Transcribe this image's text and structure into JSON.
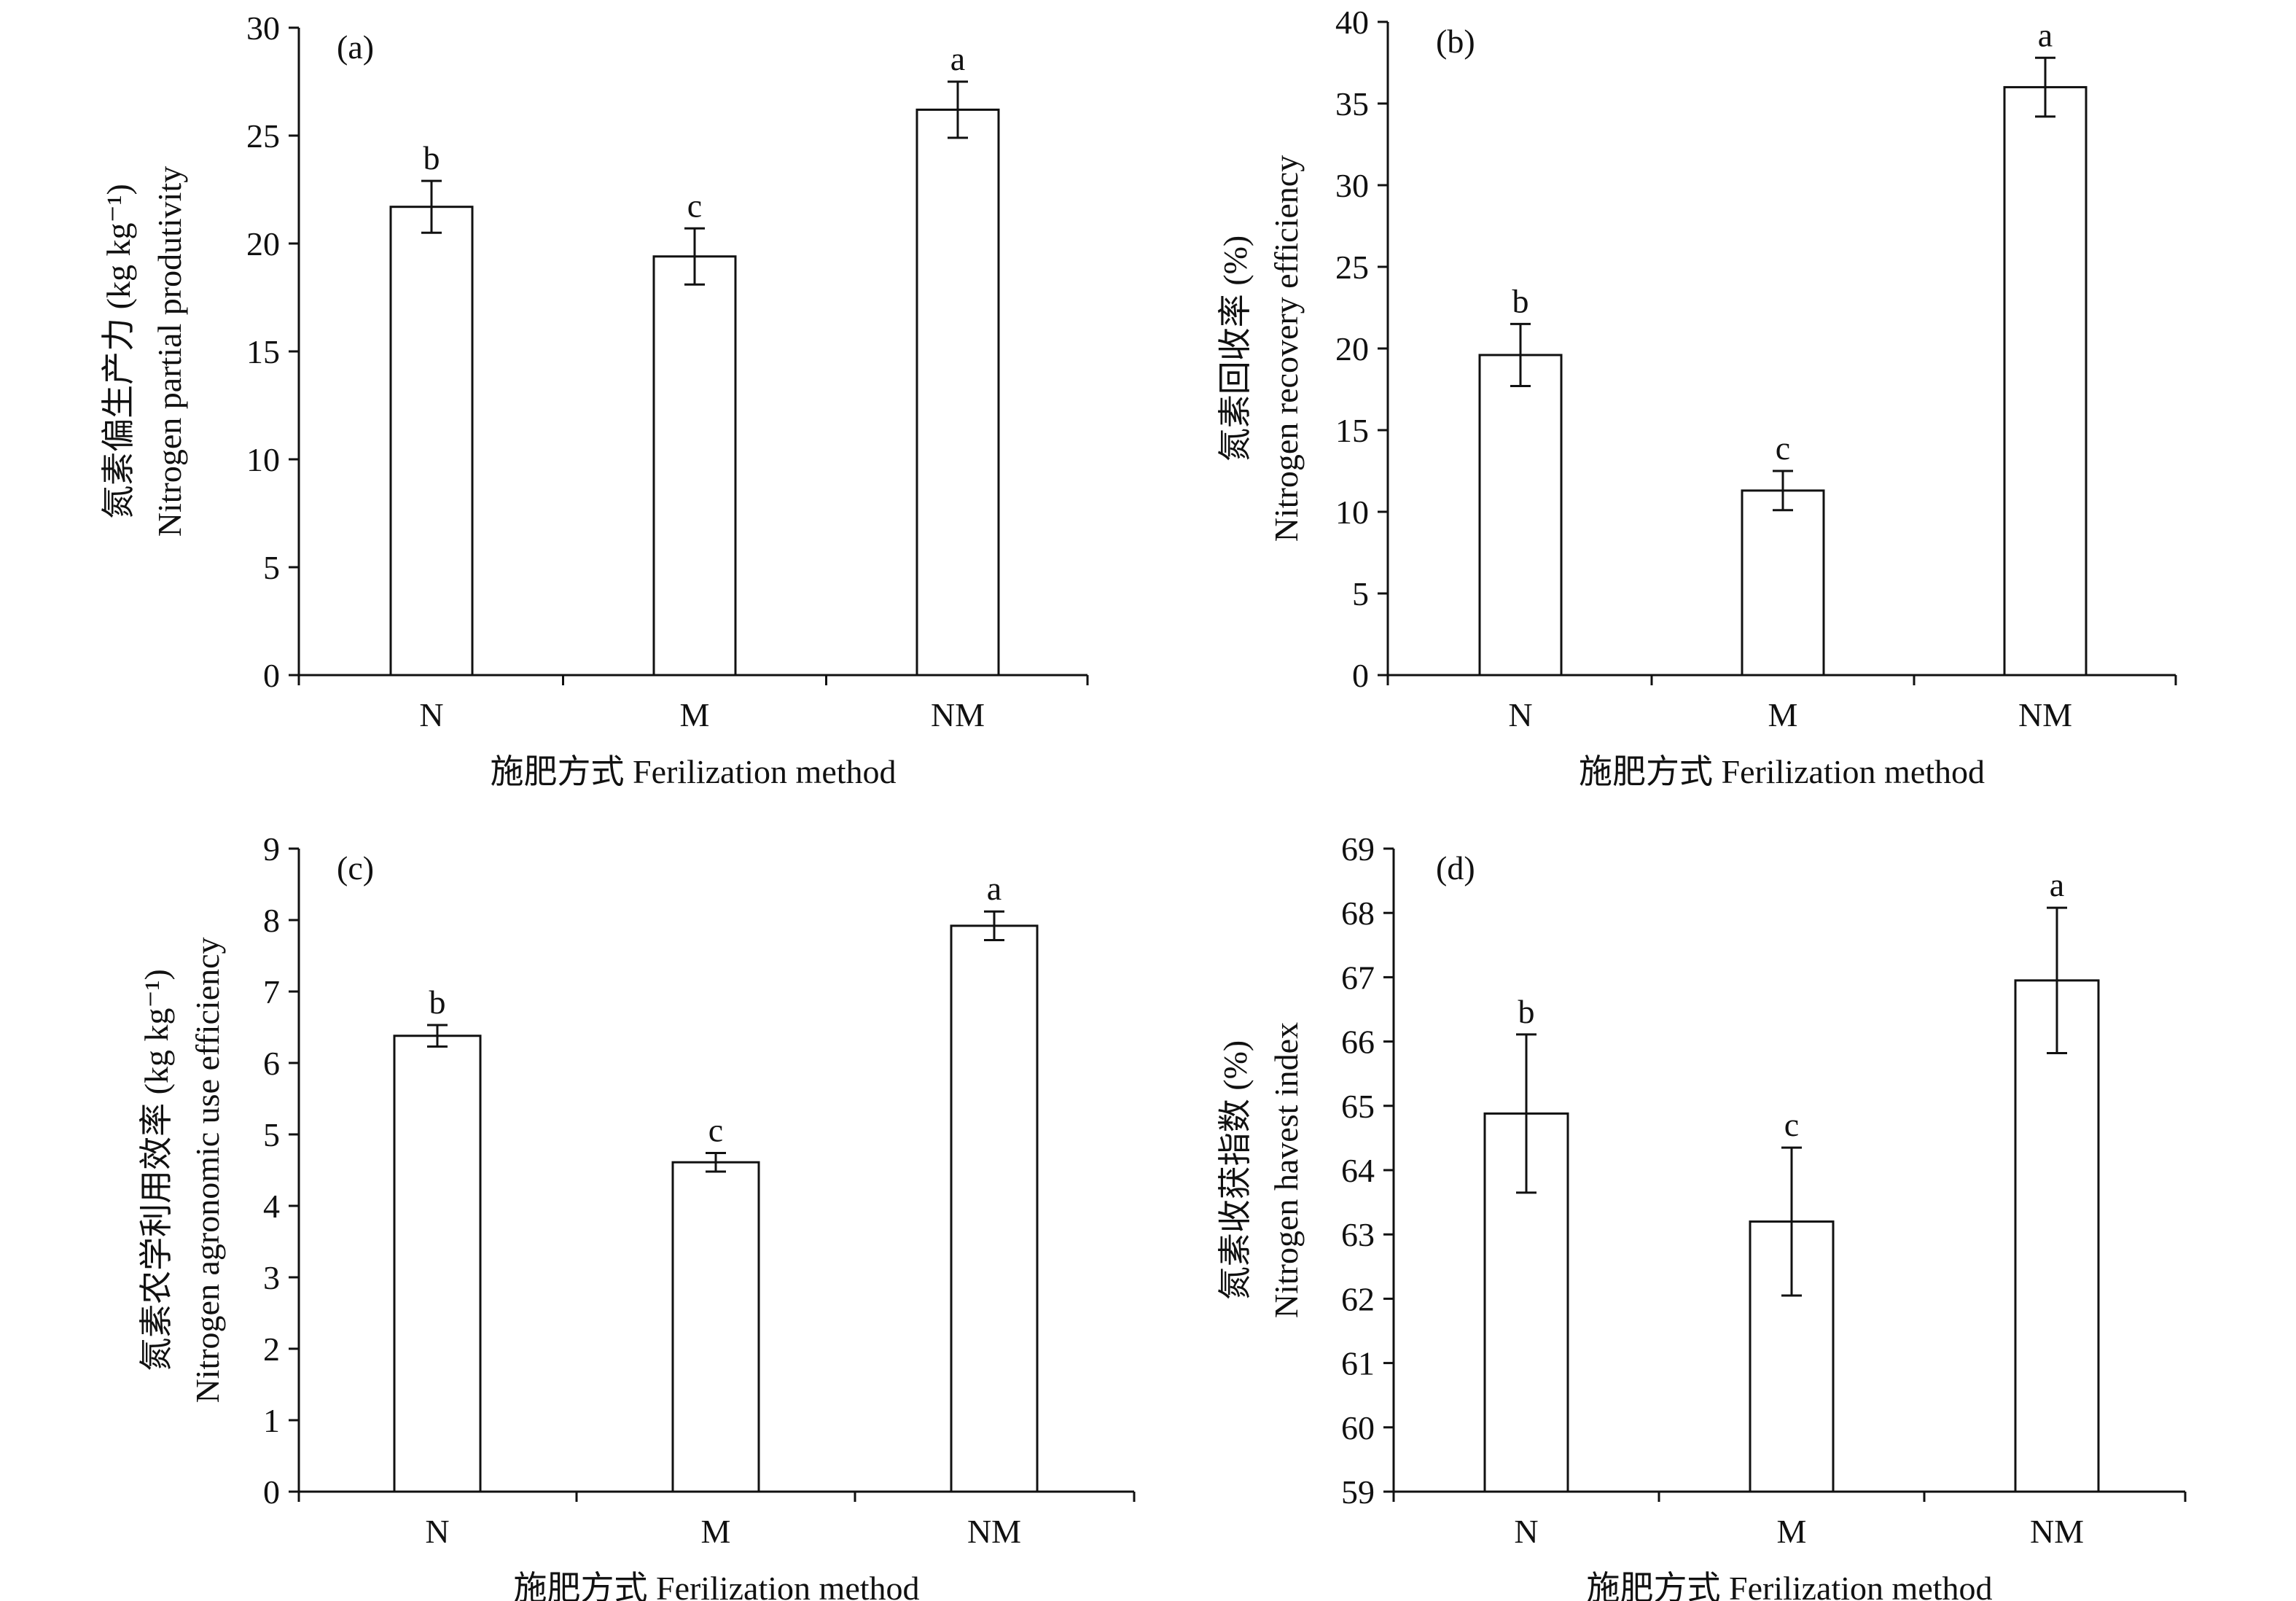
{
  "chart_data": [
    {
      "type": "bar",
      "panel_label": "(a)",
      "categories": [
        "N",
        "M",
        "NM"
      ],
      "values": [
        21.7,
        19.4,
        26.2
      ],
      "errors": [
        1.2,
        1.3,
        1.3
      ],
      "significance": [
        "b",
        "c",
        "a"
      ],
      "ylim": [
        0,
        30
      ],
      "yticks": [
        "0",
        "5",
        "10",
        "15",
        "20",
        "25",
        "30"
      ],
      "ylabel_cn": "氮素偏生产力 (kg kg⁻¹)",
      "ylabel_en": "Nitrogen partial produtivity",
      "xlabel": "施肥方式 Ferilization method"
    },
    {
      "type": "bar",
      "panel_label": "(b)",
      "categories": [
        "N",
        "M",
        "NM"
      ],
      "values": [
        19.6,
        11.3,
        36.0
      ],
      "errors": [
        1.9,
        1.2,
        1.8
      ],
      "significance": [
        "b",
        "c",
        "a"
      ],
      "ylim": [
        0,
        40
      ],
      "yticks": [
        "0",
        "5",
        "10",
        "15",
        "20",
        "25",
        "30",
        "35",
        "40"
      ],
      "ylabel_cn": "氮素回收率 (%)",
      "ylabel_en": "Nitrogen recovery efficiency",
      "xlabel": "施肥方式 Ferilization method"
    },
    {
      "type": "bar",
      "panel_label": "(c)",
      "categories": [
        "N",
        "M",
        "NM"
      ],
      "values": [
        6.38,
        4.61,
        7.92
      ],
      "errors": [
        0.15,
        0.13,
        0.2
      ],
      "significance": [
        "b",
        "c",
        "a"
      ],
      "ylim": [
        0,
        9
      ],
      "yticks": [
        "0",
        "1",
        "2",
        "3",
        "4",
        "5",
        "6",
        "7",
        "8",
        "9"
      ],
      "ylabel_cn": "氮素农学利用效率 (kg kg⁻¹)",
      "ylabel_en": "Nitrogen agronomic use efficiency",
      "xlabel": "施肥方式 Ferilization method"
    },
    {
      "type": "bar",
      "panel_label": "(d)",
      "categories": [
        "N",
        "M",
        "NM"
      ],
      "values": [
        64.88,
        63.2,
        66.95
      ],
      "errors": [
        1.23,
        1.15,
        1.13
      ],
      "significance": [
        "b",
        "c",
        "a"
      ],
      "ylim": [
        59,
        69
      ],
      "yticks": [
        "59",
        "60",
        "61",
        "62",
        "63",
        "64",
        "65",
        "66",
        "67",
        "68",
        "69"
      ],
      "ylabel_cn": "氮素收获指数 (%)",
      "ylabel_en": "Nitrogen havest index",
      "xlabel": "施肥方式 Ferilization method"
    }
  ]
}
